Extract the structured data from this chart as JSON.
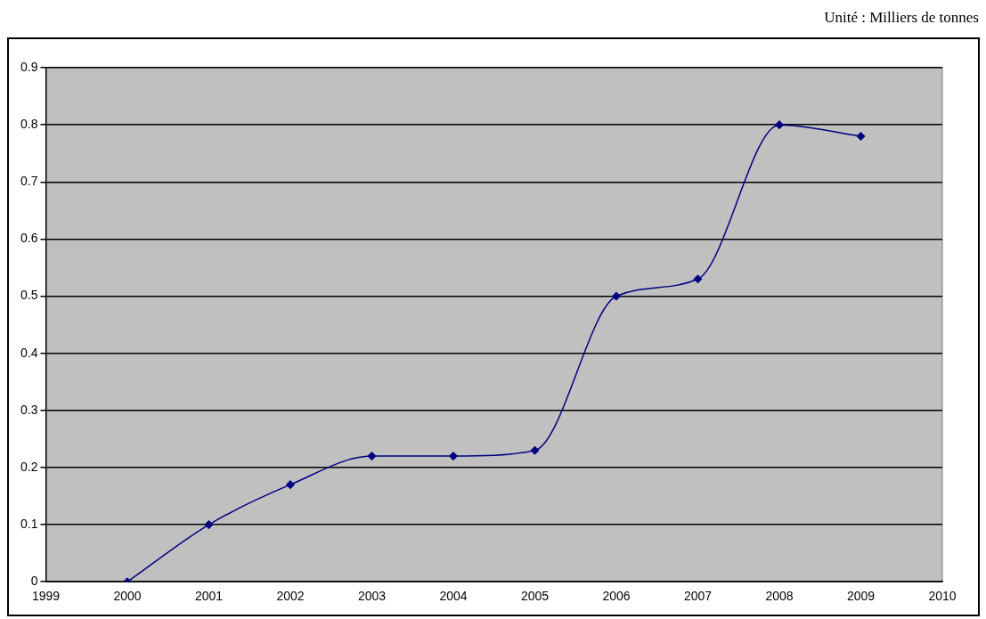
{
  "chart_data": {
    "type": "line",
    "annotations": [
      "Unité : Milliers de tonnes"
    ],
    "x": [
      2000,
      2001,
      2002,
      2003,
      2004,
      2005,
      2006,
      2007,
      2008,
      2009
    ],
    "series": [
      {
        "color": "#000080",
        "values": [
          0,
          0.1,
          0.17,
          0.22,
          0.22,
          0.23,
          0.5,
          0.53,
          0.8,
          0.78
        ]
      }
    ],
    "xlim": [
      1999,
      2010
    ],
    "xticks": [
      1999,
      2000,
      2001,
      2002,
      2003,
      2004,
      2005,
      2006,
      2007,
      2008,
      2009,
      2010
    ],
    "ylim": [
      0,
      0.9
    ],
    "yticks": [
      0,
      0.1,
      0.2,
      0.3,
      0.4,
      0.5,
      0.6,
      0.7,
      0.8,
      0.9
    ],
    "grid": "y",
    "marker": "diamond",
    "line_style": "solid",
    "legend": false
  }
}
